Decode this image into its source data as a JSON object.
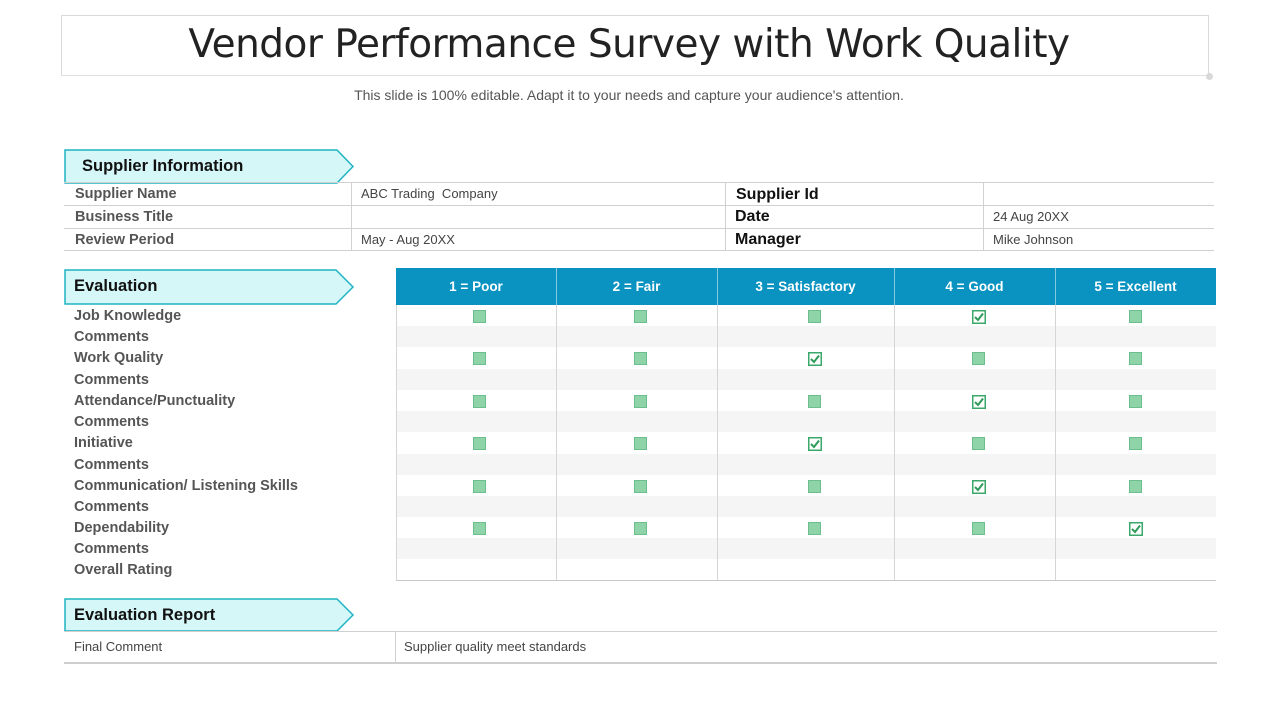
{
  "title": "Vendor Performance Survey with Work Quality",
  "subtitle": "This slide is 100% editable. Adapt it to your needs and capture your audience's attention.",
  "sections": {
    "supplier_info": "Supplier Information",
    "evaluation": "Evaluation",
    "report": "Evaluation Report"
  },
  "supplier_info": {
    "supplier_name_label": "Supplier Name",
    "supplier_name_value": "ABC Trading  Company",
    "business_title_label": "Business Title",
    "business_title_value": "",
    "review_period_label": "Review Period",
    "review_period_value": "May - Aug 20XX",
    "supplier_id_label": "Supplier Id",
    "supplier_id_value": "",
    "date_label": "Date",
    "date_value": "24 Aug 20XX",
    "manager_label": "Manager",
    "manager_value": "Mike Johnson"
  },
  "ratings": [
    "1 = Poor",
    "2 = Fair",
    "3 = Satisfactory",
    "4 = Good",
    "5 = Excellent"
  ],
  "criteria": [
    {
      "label": "Job Knowledge",
      "selected": 4
    },
    {
      "label": "Comments"
    },
    {
      "label": "Work Quality",
      "selected": 3
    },
    {
      "label": "Comments"
    },
    {
      "label": "Attendance/Punctuality",
      "selected": 4
    },
    {
      "label": "Comments"
    },
    {
      "label": "Initiative",
      "selected": 3
    },
    {
      "label": "Comments"
    },
    {
      "label": "Communication/ Listening Skills",
      "selected": 4
    },
    {
      "label": "Comments"
    },
    {
      "label": "Dependability",
      "selected": 5
    },
    {
      "label": "Comments"
    },
    {
      "label": "Overall Rating"
    }
  ],
  "report": {
    "final_comment_label": "Final Comment",
    "final_comment_value": "Supplier quality meet standards"
  },
  "colors": {
    "header_blue": "#0a93c0",
    "tag_fill": "#d6f7f8",
    "tag_border": "#1fb3c2",
    "checkbox": "#8fd3a8",
    "check_mark": "#2e9a5a"
  }
}
